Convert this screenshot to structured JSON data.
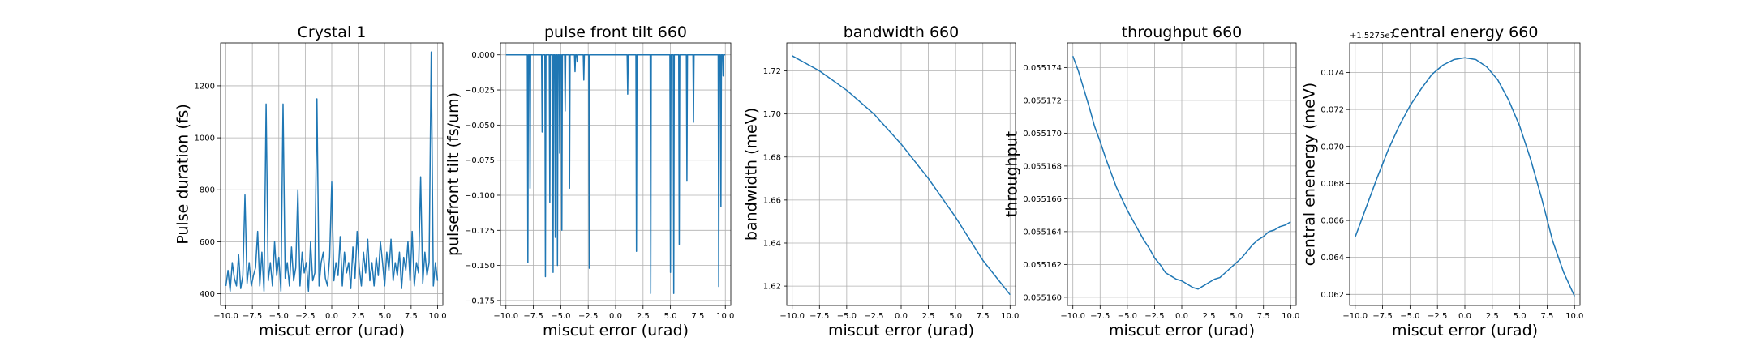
{
  "figure": {
    "background": "#ffffff",
    "line_color": "#1f77b4",
    "grid_color": "#b0b0b0"
  },
  "chart_data": [
    {
      "type": "line",
      "title": "Crystal 1",
      "xlabel": "miscut error (urad)",
      "ylabel": "Pulse duration (fs)",
      "xlim": [
        -10.5,
        10.5
      ],
      "ylim": [
        355,
        1365
      ],
      "xticks": [
        -10.0,
        -7.5,
        -5.0,
        -2.5,
        0.0,
        2.5,
        5.0,
        7.5,
        10.0
      ],
      "xtick_labels": [
        "−10.0",
        "−7.5",
        "−5.0",
        "−2.5",
        "0.0",
        "2.5",
        "5.0",
        "7.5",
        "10.0"
      ],
      "yticks": [
        400,
        600,
        800,
        1000,
        1200
      ],
      "ytick_labels": [
        "400",
        "600",
        "800",
        "1000",
        "1200"
      ],
      "grid": true,
      "series": [
        {
          "x": [
            -10.0,
            -9.8,
            -9.6,
            -9.4,
            -9.2,
            -9.0,
            -8.8,
            -8.6,
            -8.4,
            -8.2,
            -8.0,
            -7.8,
            -7.6,
            -7.4,
            -7.2,
            -7.0,
            -6.8,
            -6.6,
            -6.4,
            -6.2,
            -6.0,
            -5.8,
            -5.6,
            -5.4,
            -5.2,
            -5.0,
            -4.8,
            -4.6,
            -4.4,
            -4.2,
            -4.0,
            -3.8,
            -3.6,
            -3.4,
            -3.2,
            -3.0,
            -2.8,
            -2.6,
            -2.4,
            -2.2,
            -2.0,
            -1.8,
            -1.6,
            -1.4,
            -1.2,
            -1.0,
            -0.8,
            -0.6,
            -0.4,
            -0.2,
            0.0,
            0.2,
            0.4,
            0.6,
            0.8,
            1.0,
            1.2,
            1.4,
            1.6,
            1.8,
            2.0,
            2.2,
            2.4,
            2.6,
            2.8,
            3.0,
            3.2,
            3.4,
            3.6,
            3.8,
            4.0,
            4.2,
            4.4,
            4.6,
            4.8,
            5.0,
            5.2,
            5.4,
            5.6,
            5.8,
            6.0,
            6.2,
            6.4,
            6.6,
            6.8,
            7.0,
            7.2,
            7.4,
            7.6,
            7.8,
            8.0,
            8.2,
            8.4,
            8.6,
            8.8,
            9.0,
            9.2,
            9.4,
            9.6,
            9.8,
            10.0
          ],
          "y": [
            430,
            490,
            410,
            520,
            460,
            430,
            550,
            420,
            470,
            780,
            440,
            520,
            430,
            470,
            500,
            640,
            430,
            560,
            410,
            1130,
            450,
            520,
            430,
            600,
            470,
            540,
            410,
            1130,
            460,
            520,
            430,
            580,
            450,
            500,
            800,
            430,
            560,
            480,
            520,
            410,
            600,
            450,
            480,
            1150,
            430,
            520,
            560,
            460,
            430,
            540,
            830,
            450,
            520,
            470,
            620,
            430,
            560,
            480,
            520,
            420,
            580,
            460,
            640,
            500,
            430,
            560,
            480,
            610,
            450,
            520,
            430,
            540,
            470,
            600,
            520,
            430,
            560,
            490,
            610,
            450,
            520,
            470,
            560,
            420,
            540,
            490,
            600,
            450,
            640,
            430,
            520,
            480,
            850,
            440,
            560,
            470,
            520,
            1330,
            430,
            520,
            450
          ]
        }
      ]
    },
    {
      "type": "line",
      "title": "pulse front tilt 660",
      "xlabel": "miscut error (urad)",
      "ylabel": "pulsefront tilt (fs/um)",
      "xlim": [
        -10.5,
        10.5
      ],
      "ylim": [
        -0.1785,
        0.0085
      ],
      "xticks": [
        -10.0,
        -7.5,
        -5.0,
        -2.5,
        0.0,
        2.5,
        5.0,
        7.5,
        10.0
      ],
      "xtick_labels": [
        "−10.0",
        "−7.5",
        "−5.0",
        "−2.5",
        "0.0",
        "2.5",
        "5.0",
        "7.5",
        "10.0"
      ],
      "yticks": [
        0.0,
        -0.025,
        -0.05,
        -0.075,
        -0.1,
        -0.125,
        -0.15,
        -0.175
      ],
      "ytick_labels": [
        "0.000",
        "−0.025",
        "−0.050",
        "−0.075",
        "−0.100",
        "−0.125",
        "−0.150",
        "−0.175"
      ],
      "grid": true,
      "series": [
        {
          "x": [
            -10.0,
            -8.05,
            -8.0,
            -7.95,
            -7.85,
            -7.8,
            -7.75,
            -6.75,
            -6.7,
            -6.65,
            -6.45,
            -6.4,
            -6.35,
            -6.05,
            -6.0,
            -5.95,
            -5.75,
            -5.7,
            -5.65,
            -5.55,
            -5.5,
            -5.45,
            -5.35,
            -5.3,
            -5.25,
            -5.15,
            -5.1,
            -5.05,
            -4.95,
            -4.9,
            -4.85,
            -4.65,
            -4.6,
            -4.55,
            -4.25,
            -4.2,
            -4.15,
            -3.75,
            -3.7,
            -3.65,
            -3.55,
            -3.5,
            -3.45,
            -2.95,
            -2.9,
            -2.85,
            -2.45,
            -2.4,
            -2.35,
            1.05,
            1.1,
            1.15,
            1.85,
            1.9,
            1.95,
            3.15,
            3.2,
            3.25,
            4.95,
            5.0,
            5.05,
            5.25,
            5.3,
            5.35,
            5.75,
            5.8,
            5.85,
            6.45,
            6.5,
            6.55,
            7.05,
            7.1,
            7.15,
            9.35,
            9.4,
            9.45,
            9.55,
            9.6,
            9.65,
            9.75,
            9.8,
            9.85,
            10.0
          ],
          "y": [
            0.0,
            0.0,
            -0.148,
            0.0,
            0.0,
            -0.095,
            0.0,
            0.0,
            -0.055,
            0.0,
            0.0,
            -0.158,
            0.0,
            0.0,
            -0.105,
            0.0,
            0.0,
            -0.155,
            0.0,
            0.0,
            -0.13,
            0.0,
            0.0,
            -0.15,
            0.0,
            0.0,
            -0.07,
            0.0,
            0.0,
            -0.125,
            0.0,
            0.0,
            -0.04,
            0.0,
            0.0,
            -0.095,
            0.0,
            0.0,
            -0.012,
            0.0,
            0.0,
            -0.005,
            0.0,
            0.0,
            -0.018,
            0.0,
            0.0,
            -0.152,
            0.0,
            0.0,
            -0.028,
            0.0,
            0.0,
            -0.14,
            0.0,
            0.0,
            -0.17,
            0.0,
            0.0,
            -0.155,
            0.0,
            0.0,
            -0.17,
            0.0,
            0.0,
            -0.135,
            0.0,
            0.0,
            -0.09,
            0.0,
            0.0,
            -0.048,
            0.0,
            0.0,
            -0.165,
            0.0,
            0.0,
            -0.108,
            0.0,
            0.0,
            -0.015,
            0.0,
            0.0
          ]
        }
      ]
    },
    {
      "type": "line",
      "title": "bandwidth 660",
      "xlabel": "miscut error (urad)",
      "ylabel": "bandwidth (meV)",
      "xlim": [
        -10.5,
        10.5
      ],
      "ylim": [
        1.611,
        1.733
      ],
      "xticks": [
        -10.0,
        -7.5,
        -5.0,
        -2.5,
        0.0,
        2.5,
        5.0,
        7.5,
        10.0
      ],
      "xtick_labels": [
        "−10.0",
        "−7.5",
        "−5.0",
        "−2.5",
        "0.0",
        "2.5",
        "5.0",
        "7.5",
        "10.0"
      ],
      "yticks": [
        1.62,
        1.64,
        1.66,
        1.68,
        1.7,
        1.72
      ],
      "ytick_labels": [
        "1.62",
        "1.64",
        "1.66",
        "1.68",
        "1.70",
        "1.72"
      ],
      "grid": true,
      "series": [
        {
          "x": [
            -10.0,
            -7.5,
            -5.0,
            -2.5,
            0.0,
            2.5,
            5.0,
            7.5,
            10.0
          ],
          "y": [
            1.727,
            1.72,
            1.711,
            1.7,
            1.686,
            1.67,
            1.652,
            1.632,
            1.616
          ]
        }
      ]
    },
    {
      "type": "line",
      "title": "throughput 660",
      "xlabel": "miscut error (urad)",
      "ylabel": "throughput",
      "xlim": [
        -10.5,
        10.5
      ],
      "ylim": [
        0.0551595,
        0.0551755
      ],
      "xticks": [
        -10.0,
        -7.5,
        -5.0,
        -2.5,
        0.0,
        2.5,
        5.0,
        7.5,
        10.0
      ],
      "xtick_labels": [
        "−10.0",
        "−7.5",
        "−5.0",
        "−2.5",
        "0.0",
        "2.5",
        "5.0",
        "7.5",
        "10.0"
      ],
      "yticks": [
        0.05516,
        0.055162,
        0.055164,
        0.055166,
        0.055168,
        0.05517,
        0.055172,
        0.055174
      ],
      "ytick_labels": [
        "0.055160",
        "0.055162",
        "0.055164",
        "0.055166",
        "0.055168",
        "0.055170",
        "0.055172",
        "0.055174"
      ],
      "grid": true,
      "series": [
        {
          "x": [
            -10.0,
            -9.5,
            -9.0,
            -8.5,
            -8.0,
            -7.5,
            -7.0,
            -6.5,
            -6.0,
            -5.5,
            -5.0,
            -4.5,
            -4.0,
            -3.5,
            -3.0,
            -2.5,
            -2.0,
            -1.5,
            -1.0,
            -0.5,
            0.0,
            0.5,
            1.0,
            1.5,
            2.0,
            2.5,
            3.0,
            3.5,
            4.0,
            4.5,
            5.0,
            5.5,
            6.0,
            6.5,
            7.0,
            7.5,
            8.0,
            8.5,
            9.0,
            9.5,
            10.0
          ],
          "y": [
            0.0551747,
            0.0551738,
            0.0551727,
            0.0551716,
            0.0551704,
            0.0551695,
            0.0551685,
            0.0551676,
            0.0551667,
            0.055166,
            0.0551653,
            0.0551647,
            0.0551641,
            0.0551635,
            0.055163,
            0.0551624,
            0.055162,
            0.0551615,
            0.0551613,
            0.0551611,
            0.055161,
            0.0551608,
            0.0551606,
            0.0551605,
            0.0551607,
            0.0551609,
            0.0551611,
            0.0551612,
            0.0551615,
            0.0551618,
            0.0551621,
            0.0551624,
            0.0551628,
            0.0551632,
            0.0551635,
            0.0551637,
            0.055164,
            0.0551641,
            0.0551643,
            0.0551644,
            0.0551646
          ]
        }
      ]
    },
    {
      "type": "line",
      "title": "central energy 660",
      "xlabel": "miscut error (urad)",
      "ylabel": "central enenergy (meV)",
      "offset_text": "+1.5275e7",
      "xlim": [
        -10.5,
        10.5
      ],
      "ylim": [
        0.0614,
        0.0756
      ],
      "xticks": [
        -10.0,
        -7.5,
        -5.0,
        -2.5,
        0.0,
        2.5,
        5.0,
        7.5,
        10.0
      ],
      "xtick_labels": [
        "−10.0",
        "−7.5",
        "−5.0",
        "−2.5",
        "0.0",
        "2.5",
        "5.0",
        "7.5",
        "10.0"
      ],
      "yticks": [
        0.062,
        0.064,
        0.066,
        0.068,
        0.07,
        0.072,
        0.074
      ],
      "ytick_labels": [
        "0.062",
        "0.064",
        "0.066",
        "0.068",
        "0.070",
        "0.072",
        "0.074"
      ],
      "grid": true,
      "series": [
        {
          "x": [
            -10.0,
            -9.0,
            -8.0,
            -7.0,
            -6.0,
            -5.0,
            -4.0,
            -3.0,
            -2.0,
            -1.0,
            0.0,
            1.0,
            2.0,
            3.0,
            4.0,
            5.0,
            6.0,
            7.0,
            8.0,
            9.0,
            10.0
          ],
          "y": [
            0.0651,
            0.0667,
            0.0683,
            0.0698,
            0.0711,
            0.0722,
            0.0731,
            0.0739,
            0.0744,
            0.0747,
            0.0748,
            0.0747,
            0.0743,
            0.0736,
            0.0725,
            0.0711,
            0.0693,
            0.0672,
            0.0649,
            0.0632,
            0.0619
          ]
        }
      ]
    }
  ]
}
